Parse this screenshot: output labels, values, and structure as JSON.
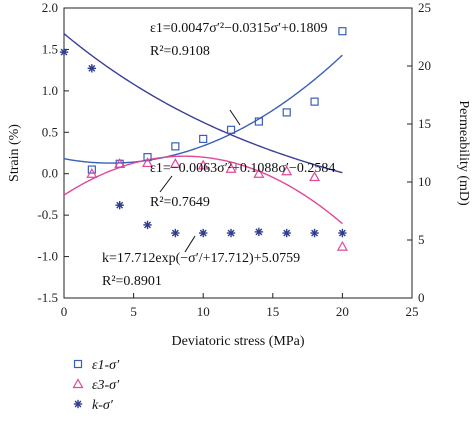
{
  "chart_data": {
    "type": "scatter",
    "xlabel": "Deviatoric stress (MPa)",
    "ylabel_left": "Strain (%)",
    "ylabel_right": "Permeability (mD)",
    "xlim": [
      0,
      25
    ],
    "ylim_left": [
      -1.5,
      2.0
    ],
    "ylim_right": [
      0,
      25
    ],
    "x_ticks": [
      "0",
      "5",
      "10",
      "15",
      "20",
      "25"
    ],
    "y_left_ticks": [
      "2.0",
      "1.5",
      "1.0",
      "0.5",
      "0.0",
      "-0.5",
      "-1.0",
      "-1.5"
    ],
    "y_right_ticks": [
      "25",
      "20",
      "15",
      "10",
      "5",
      "0"
    ],
    "series": [
      {
        "name": "ε1-σ′",
        "marker": "square",
        "color": "#3a5fb8",
        "axis": "left",
        "x": [
          2,
          4,
          6,
          8,
          10,
          12,
          14,
          16,
          18,
          20
        ],
        "y": [
          0.05,
          0.12,
          0.2,
          0.33,
          0.42,
          0.53,
          0.63,
          0.74,
          0.87,
          1.72
        ]
      },
      {
        "name": "ε3-σ′",
        "marker": "triangle",
        "color": "#e0489a",
        "axis": "left",
        "x": [
          2,
          4,
          6,
          8,
          10,
          12,
          14,
          16,
          18,
          20
        ],
        "y": [
          0.0,
          0.12,
          0.13,
          0.12,
          0.1,
          0.06,
          0.0,
          0.03,
          -0.04,
          -0.88
        ]
      },
      {
        "name": "k-σ′",
        "marker": "asterisk",
        "color": "#2f3d8f",
        "axis": "right",
        "x": [
          0,
          2,
          4,
          6,
          8,
          10,
          12,
          14,
          16,
          18,
          20
        ],
        "y": [
          21.2,
          19.8,
          8.0,
          6.3,
          5.6,
          5.6,
          5.6,
          5.7,
          5.6,
          5.6,
          5.6
        ]
      }
    ],
    "fits": [
      {
        "series": "ε1-σ′",
        "a": 0.0047,
        "b": -0.0315,
        "c": 0.1809,
        "kind": "quadratic",
        "color": "#3a5fb8",
        "x_range": [
          0,
          20
        ]
      },
      {
        "series": "ε3-σ′",
        "a": -0.0063,
        "b": 0.1088,
        "c": -0.2584,
        "kind": "quadratic",
        "color": "#e0489a",
        "x_range": [
          0,
          20
        ]
      },
      {
        "series": "k-σ′",
        "A": 17.712,
        "t": 17.712,
        "y0": 5.0759,
        "kind": "exponential",
        "color": "#3a3f9a",
        "x_range": [
          0,
          20
        ]
      }
    ],
    "annotations": {
      "eq1": "ε1=0.0047σ′²−0.0315σ′+0.1809",
      "r1": "R²=0.9108",
      "eq2": "ε1=−0.0063σ′²+0.1088σ′−0.2584",
      "r2": "R²=0.7649",
      "eq3": "k=17.712exp(−σ′/+17.712)+5.0759",
      "r3": "R²=0.8901"
    },
    "legend": {
      "position": "bottom-left",
      "items": [
        "ε1-σ′",
        "ε3-σ′",
        "k-σ′"
      ]
    }
  }
}
